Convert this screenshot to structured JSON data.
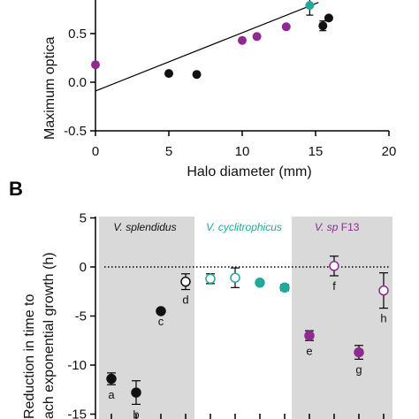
{
  "chart_data": [
    {
      "type": "scatter",
      "ylabel": "Maximum optica",
      "xlabel": "Halo diameter (mm)",
      "xlim": [
        0,
        20
      ],
      "ylim": [
        -0.5,
        0.85
      ],
      "x_ticks": [
        "0",
        "5",
        "10",
        "15",
        "20"
      ],
      "y_ticks": [
        "0.5",
        "0.0",
        "-0.5"
      ],
      "colors": {
        "black": "#111111",
        "purple": "#8e2a91",
        "teal": "#21a89a"
      },
      "regression_line": {
        "x": [
          0,
          15.2
        ],
        "y": [
          -0.09,
          0.82
        ]
      },
      "points": [
        {
          "x": 0,
          "y": 0.18,
          "color": "purple"
        },
        {
          "x": 5,
          "y": 0.09,
          "color": "black"
        },
        {
          "x": 6.9,
          "y": 0.08,
          "color": "black"
        },
        {
          "x": 10,
          "y": 0.43,
          "color": "purple"
        },
        {
          "x": 11,
          "y": 0.47,
          "color": "purple"
        },
        {
          "x": 13,
          "y": 0.57,
          "color": "purple"
        },
        {
          "x": 14.6,
          "y": 0.79,
          "color": "teal",
          "err": 0.1
        },
        {
          "x": 15.5,
          "y": 0.58,
          "color": "black",
          "err": 0.05
        },
        {
          "x": 15.9,
          "y": 0.66,
          "color": "black"
        }
      ]
    },
    {
      "type": "scatter",
      "panel_label": "B",
      "ylabel_lines": [
        "Reduction in time to",
        "ach exponential growth (h)"
      ],
      "ylim": [
        -15,
        5
      ],
      "y_ticks": [
        "5",
        "0",
        "-5",
        "-10",
        "-15"
      ],
      "groups": [
        {
          "label": "V. splendidus",
          "shaded": true,
          "color": "#111111"
        },
        {
          "label": "V. cyclitrophicus",
          "shaded": false,
          "color": "#21a89a"
        },
        {
          "label": "V. sp",
          "label_suffix": " F13",
          "shaded": true,
          "color": "#8e2a91"
        }
      ],
      "points": [
        {
          "pos": 1,
          "y": -11.4,
          "err": 0.6,
          "color": "black",
          "filled": true,
          "letter": "a"
        },
        {
          "pos": 2,
          "y": -12.8,
          "err": 1.2,
          "color": "black",
          "filled": true,
          "letter": "b"
        },
        {
          "pos": 3,
          "y": -4.5,
          "err": 0.0,
          "color": "black",
          "filled": true,
          "letter": "c"
        },
        {
          "pos": 4,
          "y": -1.5,
          "err": 0.8,
          "color": "black",
          "filled": false,
          "letter": "d"
        },
        {
          "pos": 5,
          "y": -1.2,
          "err": 0.5,
          "color": "teal",
          "filled": false,
          "letter": ""
        },
        {
          "pos": 6,
          "y": -1.1,
          "err": 1.0,
          "color": "teal",
          "filled": false,
          "letter": ""
        },
        {
          "pos": 7,
          "y": -1.6,
          "err": 0.1,
          "color": "teal",
          "filled": true,
          "letter": ""
        },
        {
          "pos": 8,
          "y": -2.1,
          "err": 0.3,
          "color": "teal",
          "filled": true,
          "letter": ""
        },
        {
          "pos": 9,
          "y": -7.0,
          "err": 0.5,
          "color": "purple",
          "filled": true,
          "letter": "e"
        },
        {
          "pos": 10,
          "y": 0.1,
          "err": 1.0,
          "color": "purple",
          "filled": false,
          "letter": "f"
        },
        {
          "pos": 11,
          "y": -8.7,
          "err": 0.7,
          "color": "purple",
          "filled": true,
          "letter": "g"
        },
        {
          "pos": 12,
          "y": -2.4,
          "err": 1.8,
          "color": "purple",
          "filled": false,
          "letter": "h"
        }
      ]
    }
  ]
}
